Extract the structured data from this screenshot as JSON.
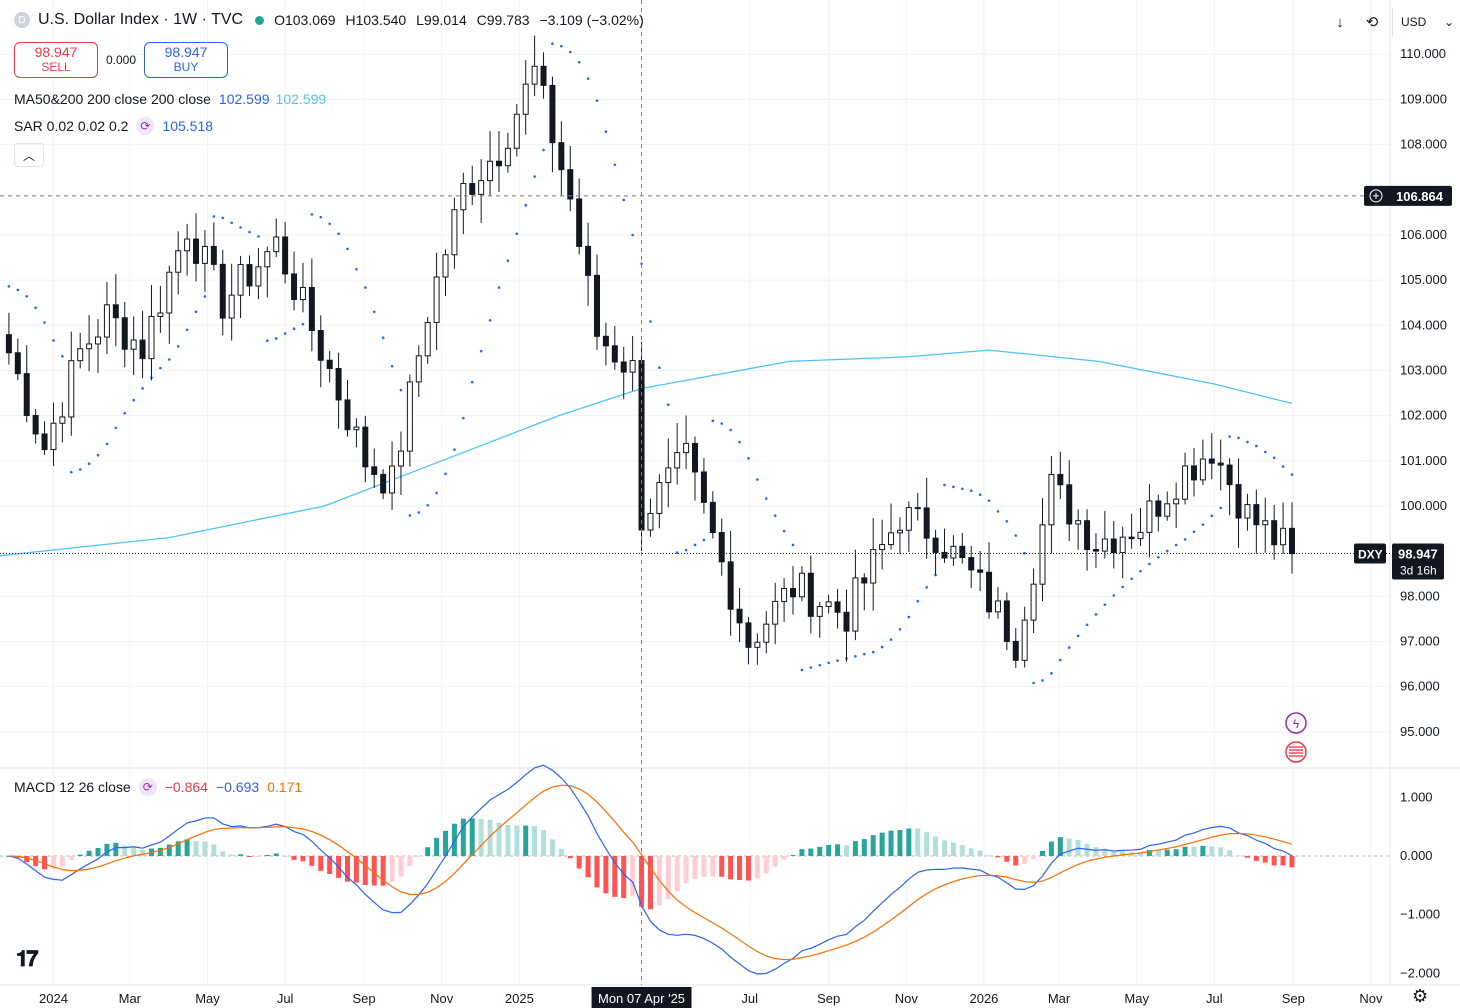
{
  "header": {
    "title": "U.S. Dollar Index · 1W · TVC",
    "logo_letter": "D",
    "open_label": "O",
    "open": "103.069",
    "high_label": "H",
    "high": "103.540",
    "low_label": "L",
    "low": "99.014",
    "close_label": "C",
    "close": "99.783",
    "change": "−3.109 (−3.02%)"
  },
  "trade": {
    "sell_price": "98.947",
    "sell_label": "SELL",
    "spread": "0.000",
    "buy_price": "98.947",
    "buy_label": "BUY"
  },
  "indicators": {
    "ma": {
      "label": "MA50&200 200 close 200 close",
      "v1": "102.599",
      "v2": "102.599"
    },
    "sar": {
      "label": "SAR 0.02 0.02 0.2",
      "value": "105.518"
    },
    "macd": {
      "label": "MACD 12 26 close",
      "hist": "−0.864",
      "macd": "−0.693",
      "signal": "0.171"
    }
  },
  "toolbar": {
    "currency": "USD",
    "down_icon": "arrow-down-icon",
    "refresh_icon": "refresh-icon"
  },
  "price_axis": {
    "labels": [
      "110.000",
      "109.000",
      "108.000",
      "106.000",
      "105.000",
      "104.000",
      "103.000",
      "102.000",
      "101.000",
      "100.000",
      "98.000",
      "97.000",
      "96.000",
      "95.000"
    ],
    "crosshair_price": "106.864",
    "last_symbol": "DXY",
    "last_price": "98.947",
    "countdown": "3d 16h"
  },
  "macd_axis": {
    "labels": [
      "1.000",
      "0.000",
      "−1.000",
      "−2.000"
    ]
  },
  "time_axis": {
    "labels": [
      "2024",
      "Mar",
      "May",
      "Jul",
      "Sep",
      "Nov",
      "2025",
      "Jul",
      "Sep",
      "Nov",
      "2026",
      "Mar",
      "May",
      "Jul",
      "Sep",
      "Nov"
    ],
    "crosshair_date": "Mon 07 Apr '25"
  },
  "colors": {
    "up": "#131722",
    "down": "#131722",
    "ma": "#4fc3f7",
    "sar": "#2962ff",
    "macd_line": "#2962ff",
    "signal_line": "#ff6d00",
    "hist_pos_strong": "#26a69a",
    "hist_pos_weak": "#b2dfdb",
    "hist_neg_strong": "#ff5252",
    "hist_neg_weak": "#ffcdd2"
  },
  "chart_data": {
    "type": "candlestick",
    "interval": "1W",
    "price_range": [
      94.2,
      111.2
    ],
    "x_range": [
      "2023-11-20",
      "2026-11-16"
    ],
    "candles_anchor": [
      {
        "date": "2023-11-27",
        "close": 103.4
      },
      {
        "date": "2023-12-25",
        "close": 101.3
      },
      {
        "date": "2024-01-22",
        "close": 103.4
      },
      {
        "date": "2024-02-12",
        "close": 104.2
      },
      {
        "date": "2024-03-11",
        "close": 103.5
      },
      {
        "date": "2024-04-15",
        "close": 106.2
      },
      {
        "date": "2024-05-13",
        "close": 104.5
      },
      {
        "date": "2024-06-24",
        "close": 105.8
      },
      {
        "date": "2024-08-05",
        "close": 103.0
      },
      {
        "date": "2024-09-02",
        "close": 101.0
      },
      {
        "date": "2024-09-23",
        "close": 100.5
      },
      {
        "date": "2024-10-21",
        "close": 104.3
      },
      {
        "date": "2024-11-18",
        "close": 107.0
      },
      {
        "date": "2024-12-16",
        "close": 107.9
      },
      {
        "date": "2025-01-13",
        "close": 109.6
      },
      {
        "date": "2025-02-10",
        "close": 106.8
      },
      {
        "date": "2025-03-03",
        "close": 103.8
      },
      {
        "date": "2025-03-31",
        "close": 103.0
      },
      {
        "date": "2025-04-07",
        "close": 99.8
      },
      {
        "date": "2025-05-12",
        "close": 101.0
      },
      {
        "date": "2025-06-30",
        "close": 97.0
      },
      {
        "date": "2025-08-04",
        "close": 98.2
      },
      {
        "date": "2025-09-15",
        "close": 97.6
      },
      {
        "date": "2025-10-27",
        "close": 99.8
      },
      {
        "date": "2025-11-24",
        "close": 99.4
      },
      {
        "date": "2025-12-29",
        "close": 98.2
      },
      {
        "date": "2026-01-26",
        "close": 97.0
      },
      {
        "date": "2026-02-23",
        "close": 100.4
      },
      {
        "date": "2026-03-30",
        "close": 99.2
      },
      {
        "date": "2026-05-04",
        "close": 99.6
      },
      {
        "date": "2026-06-01",
        "close": 100.6
      },
      {
        "date": "2026-06-29",
        "close": 101.3
      },
      {
        "date": "2026-07-27",
        "close": 99.8
      },
      {
        "date": "2026-08-31",
        "close": 98.947
      }
    ],
    "ma200": [
      {
        "date": "2023-11-20",
        "value": 98.9
      },
      {
        "date": "2024-04-01",
        "value": 99.3
      },
      {
        "date": "2024-08-01",
        "value": 100.0
      },
      {
        "date": "2024-11-01",
        "value": 101.0
      },
      {
        "date": "2025-02-01",
        "value": 102.0
      },
      {
        "date": "2025-04-07",
        "value": 102.6
      },
      {
        "date": "2025-08-01",
        "value": 103.2
      },
      {
        "date": "2025-11-01",
        "value": 103.3
      },
      {
        "date": "2026-01-05",
        "value": 103.45
      },
      {
        "date": "2026-04-01",
        "value": 103.2
      },
      {
        "date": "2026-07-01",
        "value": 102.7
      },
      {
        "date": "2026-08-31",
        "value": 102.27
      }
    ],
    "macd": {
      "range": [
        -2.2,
        1.5
      ]
    }
  }
}
